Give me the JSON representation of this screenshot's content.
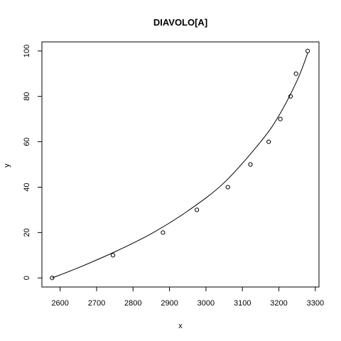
{
  "chart_data": {
    "type": "scatter",
    "title": "DIAVOLO[A]",
    "xlabel": "x",
    "ylabel": "y",
    "xlim": [
      2550,
      3310
    ],
    "ylim": [
      -4,
      104
    ],
    "xticks": [
      2600,
      2700,
      2800,
      2900,
      3000,
      3100,
      3200,
      3300
    ],
    "yticks": [
      0,
      20,
      40,
      60,
      80,
      100
    ],
    "grid": false,
    "points": {
      "x": [
        2578,
        2745,
        2882,
        2975,
        3060,
        3122,
        3172,
        3204,
        3232,
        3247,
        3279
      ],
      "y": [
        0,
        10,
        20,
        30,
        40,
        50,
        60,
        70,
        80,
        90,
        100
      ]
    },
    "fit_curve": {
      "x": [
        2578,
        2650,
        2750,
        2850,
        2950,
        3050,
        3150,
        3200,
        3250,
        3279
      ],
      "y": [
        0,
        4.5,
        11.5,
        19.5,
        29.5,
        42,
        60,
        71.5,
        87,
        99
      ]
    }
  }
}
